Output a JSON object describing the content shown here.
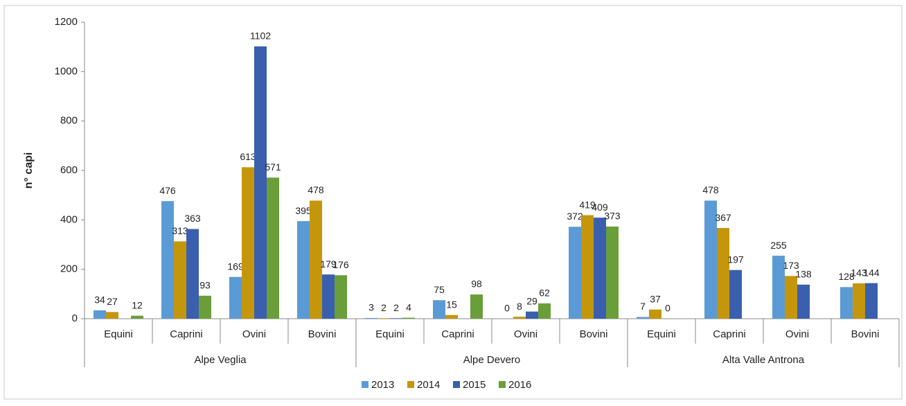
{
  "chart_data": {
    "type": "bar",
    "ylabel": "n° capi",
    "ylim": [
      0,
      1200
    ],
    "yticks": [
      0,
      200,
      400,
      600,
      800,
      1000,
      1200
    ],
    "groups": [
      {
        "name": "Alpe Veglia",
        "categories": [
          "Equini",
          "Caprini",
          "Ovini",
          "Bovini"
        ]
      },
      {
        "name": "Alpe Devero",
        "categories": [
          "Equini",
          "Caprini",
          "Ovini",
          "Bovini"
        ]
      },
      {
        "name": "Alta Valle Antrona",
        "categories": [
          "Equini",
          "Caprini",
          "Ovini",
          "Bovini"
        ]
      }
    ],
    "series": [
      {
        "name": "2013",
        "color": "#5b9bd5",
        "values": [
          34,
          476,
          169,
          395,
          3,
          75,
          0,
          372,
          7,
          478,
          255,
          128
        ]
      },
      {
        "name": "2014",
        "color": "#c4960c",
        "values": [
          27,
          313,
          613,
          478,
          2,
          15,
          8,
          419,
          37,
          367,
          173,
          143
        ]
      },
      {
        "name": "2015",
        "color": "#3a5fae",
        "values": [
          null,
          363,
          1102,
          179,
          2,
          null,
          29,
          409,
          0,
          197,
          138,
          144
        ]
      },
      {
        "name": "2016",
        "color": "#6a9e3a",
        "values": [
          12,
          93,
          571,
          176,
          4,
          98,
          62,
          373,
          null,
          null,
          null,
          null
        ]
      }
    ]
  }
}
